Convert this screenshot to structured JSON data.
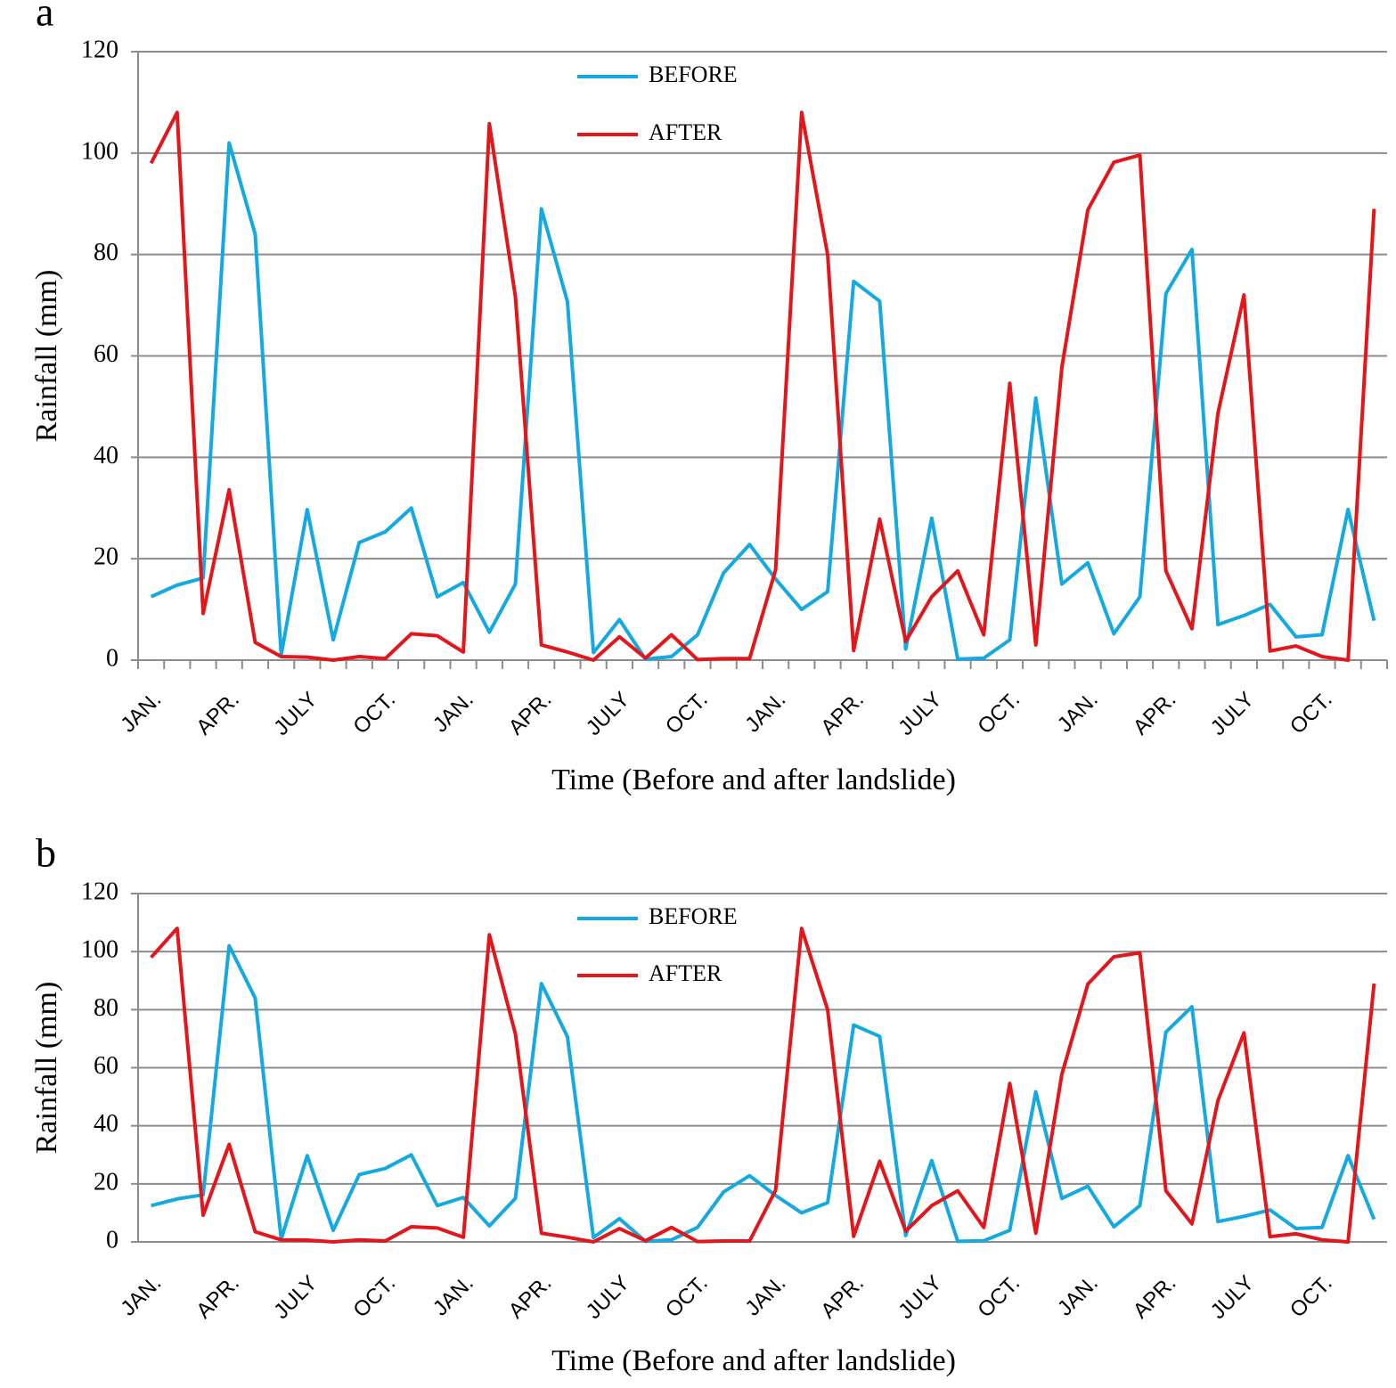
{
  "chart_data": [
    {
      "type": "line",
      "panel": "a",
      "x_label": "Time (Before and after landslide)",
      "y_label": "Rainfall (mm)",
      "categories": [
        "JAN.",
        null,
        null,
        "APR.",
        null,
        null,
        "JULY",
        null,
        null,
        "OCT.",
        null,
        null,
        "JAN.",
        null,
        null,
        "APR.",
        null,
        null,
        "JULY",
        null,
        null,
        "OCT.",
        null,
        null,
        "JAN.",
        null,
        null,
        "APR.",
        null,
        null,
        "JULY",
        null,
        null,
        "OCT.",
        null,
        null,
        "JAN.",
        null,
        null,
        "APR.",
        null,
        null,
        "JULY",
        null,
        null,
        "OCT.",
        null,
        null
      ],
      "series": [
        {
          "name": "BEFORE",
          "color": "#14a9e0",
          "values": [
            12.5,
            14.8,
            16.2,
            102,
            84,
            1,
            29.7,
            4,
            23.2,
            25.3,
            30,
            12.5,
            15.3,
            5.5,
            15,
            89,
            70.7,
            1.5,
            8,
            0.2,
            0.7,
            5,
            17.2,
            22.8,
            16,
            10,
            13.5,
            74.7,
            70.8,
            2.2,
            28,
            0.2,
            0.4,
            4,
            51.7,
            15,
            19.2,
            5.2,
            12.5,
            72.3,
            81,
            7,
            8.8,
            11,
            4.6,
            5,
            29.7,
            7.8
          ]
        },
        {
          "name": "AFTER",
          "color": "#e3161b",
          "values": [
            98,
            108,
            9.2,
            33.6,
            3.5,
            0.7,
            0.6,
            0,
            0.7,
            0.3,
            5.2,
            4.8,
            1.6,
            105.8,
            71.7,
            3,
            1.6,
            0,
            4.6,
            0.4,
            5,
            0.1,
            0.3,
            0.3,
            17.8,
            108,
            80,
            1.9,
            27.8,
            3.7,
            12.5,
            17.6,
            5,
            54.6,
            3,
            57.7,
            88.8,
            98.2,
            99.6,
            17.6,
            6.2,
            48.7,
            72,
            1.8,
            2.8,
            0.7,
            0,
            89
          ]
        }
      ],
      "ylim": [
        0,
        120
      ],
      "yticks": [
        0,
        20,
        40,
        60,
        80,
        100,
        120
      ],
      "grid": true
    },
    {
      "type": "line",
      "panel": "b",
      "x_label": "Time (Before and after landslide)",
      "y_label": "Rainfall (mm)",
      "categories": [
        "JAN.",
        null,
        null,
        "APR.",
        null,
        null,
        "JULY",
        null,
        null,
        "OCT.",
        null,
        null,
        "JAN.",
        null,
        null,
        "APR.",
        null,
        null,
        "JULY",
        null,
        null,
        "OCT.",
        null,
        null,
        "JAN.",
        null,
        null,
        "APR.",
        null,
        null,
        "JULY",
        null,
        null,
        "OCT.",
        null,
        null,
        "JAN.",
        null,
        null,
        "APR.",
        null,
        null,
        "JULY",
        null,
        null,
        "OCT.",
        null,
        null
      ],
      "series": [
        {
          "name": "BEFORE",
          "color": "#14a9e0",
          "values": [
            12.5,
            14.8,
            16.2,
            102,
            84,
            1,
            29.7,
            4,
            23.2,
            25.3,
            30,
            12.5,
            15.3,
            5.5,
            15,
            89,
            70.7,
            1.5,
            8,
            0.2,
            0.7,
            5,
            17.2,
            22.8,
            16,
            10,
            13.5,
            74.7,
            70.8,
            2.2,
            28,
            0.2,
            0.4,
            4,
            51.7,
            15,
            19.2,
            5.2,
            12.5,
            72.3,
            81,
            7,
            8.8,
            11,
            4.6,
            5,
            29.7,
            7.8
          ]
        },
        {
          "name": "AFTER",
          "color": "#e3161b",
          "values": [
            98,
            108,
            9.2,
            33.6,
            3.5,
            0.7,
            0.6,
            0,
            0.7,
            0.3,
            5.2,
            4.8,
            1.6,
            105.8,
            71.7,
            3,
            1.6,
            0,
            4.6,
            0.4,
            5,
            0.1,
            0.3,
            0.3,
            17.8,
            108,
            80,
            1.9,
            27.8,
            3.7,
            12.5,
            17.6,
            5,
            54.6,
            3,
            57.7,
            88.8,
            98.2,
            99.6,
            17.6,
            6.2,
            48.7,
            72,
            1.8,
            2.8,
            0.7,
            0,
            89
          ]
        }
      ],
      "ylim": [
        0,
        120
      ],
      "yticks": [
        0,
        20,
        40,
        60,
        80,
        100,
        120
      ],
      "grid": true
    }
  ]
}
